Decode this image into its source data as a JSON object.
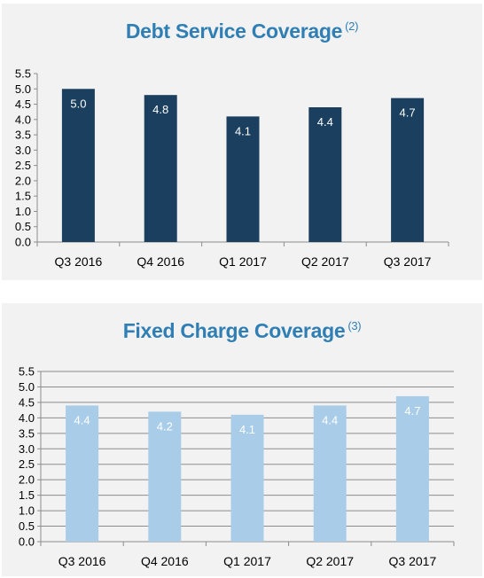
{
  "chart_data": [
    {
      "type": "bar",
      "title": "Debt Service Coverage",
      "title_note": "(2)",
      "categories": [
        "Q3 2016",
        "Q4 2016",
        "Q1 2017",
        "Q2 2017",
        "Q3 2017"
      ],
      "values": [
        5.0,
        4.8,
        4.1,
        4.4,
        4.7
      ],
      "data_labels": [
        "5.0",
        "4.8",
        "4.1",
        "4.4",
        "4.7"
      ],
      "ylim": [
        0,
        5.5
      ],
      "yticks": [
        "0.0",
        "0.5",
        "1.0",
        "1.5",
        "2.0",
        "2.5",
        "3.0",
        "3.5",
        "4.0",
        "4.5",
        "5.0",
        "5.5"
      ],
      "xlabel": "",
      "ylabel": "",
      "grid": false,
      "bar_color": "#1b3f5e",
      "label_color": "#ffffff"
    },
    {
      "type": "bar",
      "title": "Fixed Charge Coverage",
      "title_note": "(3)",
      "categories": [
        "Q3 2016",
        "Q4 2016",
        "Q1 2017",
        "Q2 2017",
        "Q3 2017"
      ],
      "values": [
        4.4,
        4.2,
        4.1,
        4.4,
        4.7
      ],
      "data_labels": [
        "4.4",
        "4.2",
        "4.1",
        "4.4",
        "4.7"
      ],
      "ylim": [
        0,
        5.5
      ],
      "yticks": [
        "0.0",
        "0.5",
        "1.0",
        "1.5",
        "2.0",
        "2.5",
        "3.0",
        "3.5",
        "4.0",
        "4.5",
        "5.0",
        "5.5"
      ],
      "xlabel": "",
      "ylabel": "",
      "grid": true,
      "bar_color": "#a9cde9",
      "label_color": "#ffffff"
    }
  ]
}
